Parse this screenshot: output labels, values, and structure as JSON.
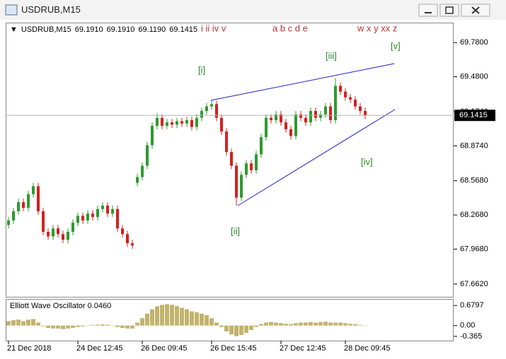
{
  "window": {
    "title": "USDRUB,M15"
  },
  "chart_data": [
    {
      "type": "candlestick",
      "symbol": "USDRUB,M15",
      "ohlc_info": [
        "69.1910",
        "69.1910",
        "69.1190",
        "69.1415"
      ],
      "categories": [
        "21 Dec 2018",
        null,
        null,
        null,
        null,
        null,
        null,
        null,
        null,
        null,
        null,
        null,
        null,
        null,
        "24 Dec 12:45",
        null,
        null,
        null,
        null,
        null,
        null,
        null,
        null,
        null,
        null,
        null,
        null,
        "26 Dec 09:45",
        null,
        null,
        null,
        null,
        null,
        null,
        null,
        null,
        null,
        null,
        null,
        null,
        null,
        "26 Dec 15:45",
        null,
        null,
        null,
        null,
        null,
        null,
        null,
        null,
        null,
        null,
        null,
        null,
        null,
        "27 Dec 12:45",
        null,
        null,
        null,
        null,
        null,
        null,
        null,
        null,
        null,
        null,
        null,
        null,
        "28 Dec 09:45",
        null,
        null,
        null,
        null
      ],
      "open": [
        68.18,
        68.22,
        68.3,
        68.38,
        68.33,
        68.45,
        68.52,
        68.3,
        68.12,
        68.08,
        68.15,
        68.1,
        68.05,
        68.12,
        68.2,
        68.26,
        68.22,
        68.28,
        68.25,
        68.32,
        68.35,
        68.28,
        68.32,
        68.15,
        68.1,
        68.02,
        68.55,
        68.6,
        68.7,
        68.88,
        69.05,
        69.12,
        69.05,
        69.08,
        69.06,
        69.09,
        69.07,
        69.1,
        69.04,
        69.12,
        69.18,
        69.22,
        69.24,
        69.12,
        69.0,
        68.82,
        68.7,
        68.42,
        68.62,
        68.72,
        68.66,
        68.8,
        68.95,
        69.12,
        69.1,
        69.15,
        69.08,
        69.02,
        68.96,
        69.15,
        69.12,
        69.08,
        69.18,
        69.12,
        69.15,
        69.22,
        69.1,
        69.4,
        69.35,
        69.3,
        69.28,
        69.22,
        69.18
      ],
      "high": [
        68.25,
        68.33,
        68.41,
        68.41,
        68.48,
        68.55,
        68.55,
        68.33,
        68.15,
        68.18,
        68.18,
        68.13,
        68.15,
        68.23,
        68.29,
        68.29,
        68.31,
        68.31,
        68.35,
        68.38,
        68.38,
        68.35,
        68.35,
        68.18,
        68.13,
        68.05,
        68.63,
        68.73,
        68.91,
        69.08,
        69.16,
        69.15,
        69.11,
        69.11,
        69.12,
        69.12,
        69.13,
        69.13,
        69.15,
        69.21,
        69.25,
        69.27,
        69.27,
        69.15,
        69.03,
        68.85,
        68.73,
        68.65,
        68.75,
        68.75,
        68.83,
        68.98,
        69.15,
        69.15,
        69.18,
        69.18,
        69.11,
        69.05,
        69.18,
        69.18,
        69.15,
        69.21,
        69.21,
        69.18,
        69.25,
        69.25,
        69.47,
        69.43,
        69.38,
        69.33,
        69.31,
        69.25,
        69.21
      ],
      "low": [
        68.15,
        68.19,
        68.27,
        68.3,
        68.3,
        68.42,
        68.27,
        68.09,
        68.05,
        68.05,
        68.07,
        68.02,
        68.02,
        68.09,
        68.17,
        68.19,
        68.19,
        68.22,
        68.22,
        68.29,
        68.25,
        68.25,
        68.12,
        68.07,
        67.99,
        67.97,
        68.52,
        68.57,
        68.67,
        68.85,
        69.02,
        69.02,
        69.02,
        69.03,
        69.03,
        69.04,
        69.04,
        69.01,
        69.01,
        69.09,
        69.15,
        69.19,
        69.09,
        68.97,
        68.79,
        68.67,
        68.35,
        68.39,
        68.59,
        68.63,
        68.63,
        68.77,
        68.92,
        69.07,
        69.07,
        69.05,
        68.99,
        68.93,
        68.93,
        69.09,
        69.05,
        69.05,
        69.09,
        69.09,
        69.12,
        69.07,
        69.07,
        69.32,
        69.27,
        69.25,
        69.19,
        69.15,
        69.11
      ],
      "close": [
        68.22,
        68.3,
        68.38,
        68.33,
        68.45,
        68.52,
        68.3,
        68.12,
        68.08,
        68.15,
        68.1,
        68.05,
        68.12,
        68.2,
        68.26,
        68.22,
        68.28,
        68.25,
        68.32,
        68.35,
        68.28,
        68.32,
        68.15,
        68.1,
        68.02,
        68.0,
        68.6,
        68.7,
        68.88,
        69.05,
        69.12,
        69.05,
        69.08,
        69.06,
        69.09,
        69.07,
        69.1,
        69.04,
        69.12,
        69.18,
        69.22,
        69.24,
        69.12,
        69.0,
        68.82,
        68.7,
        68.42,
        68.62,
        68.72,
        68.66,
        68.8,
        68.95,
        69.12,
        69.1,
        69.15,
        69.08,
        69.02,
        68.96,
        69.15,
        69.12,
        69.08,
        69.18,
        69.12,
        69.15,
        69.22,
        69.1,
        69.4,
        69.35,
        69.3,
        69.28,
        69.22,
        69.18,
        69.14
      ],
      "up_color": "#2e9a2e",
      "down_color": "#d42020",
      "ylim": [
        67.55,
        69.955
      ],
      "yticks": [
        {
          "value": 69.78,
          "label": "69.7800"
        },
        {
          "value": 69.48,
          "label": "69.4800"
        },
        {
          "value": 69.174,
          "label": "69.1740"
        },
        {
          "value": 68.874,
          "label": "68.8740"
        },
        {
          "value": 68.568,
          "label": "68.5680"
        },
        {
          "value": 68.268,
          "label": "68.2680"
        },
        {
          "value": 67.968,
          "label": "67.9680"
        },
        {
          "value": 67.662,
          "label": "67.6620"
        }
      ],
      "last_price": {
        "value": 69.1415,
        "label": "69.1415"
      },
      "annotations": [
        {
          "text": "i ii iv v",
          "color": "#c03030"
        },
        {
          "text": "a b c d e",
          "color": "#c03030"
        },
        {
          "text": "w x y xx z",
          "color": "#c03030"
        },
        {
          "text": "[i]",
          "color": "#2a8a2a"
        },
        {
          "text": "[ii]",
          "color": "#2a8a2a"
        },
        {
          "text": "[iii]",
          "color": "#2a8a2a"
        },
        {
          "text": "[iv]",
          "color": "#2a8a2a"
        },
        {
          "text": "[v]",
          "color": "#2a8a2a"
        }
      ]
    },
    {
      "type": "bar",
      "title": "Elliott Wave Oscillator 0.0460",
      "color": "#c2b36e",
      "values": [
        0.15,
        0.18,
        0.2,
        0.15,
        0.2,
        0.22,
        0.1,
        -0.02,
        -0.08,
        -0.1,
        -0.1,
        -0.12,
        -0.1,
        -0.08,
        -0.05,
        -0.03,
        0.0,
        0.02,
        0.03,
        0.04,
        0.03,
        0.0,
        -0.05,
        -0.08,
        -0.1,
        -0.1,
        0.1,
        0.25,
        0.4,
        0.55,
        0.65,
        0.7,
        0.72,
        0.7,
        0.66,
        0.6,
        0.55,
        0.48,
        0.45,
        0.4,
        0.35,
        0.25,
        0.1,
        -0.05,
        -0.2,
        -0.3,
        -0.36,
        -0.32,
        -0.25,
        -0.15,
        -0.05,
        0.05,
        0.1,
        0.12,
        0.1,
        0.08,
        0.06,
        0.05,
        0.08,
        0.1,
        0.1,
        0.12,
        0.1,
        0.12,
        0.13,
        0.1,
        0.1,
        0.1,
        0.08,
        0.06,
        0.05,
        0.02,
        0.0
      ],
      "ylim": [
        -0.51,
        0.9
      ],
      "yticks": [
        0.6797,
        {
          "value": 0,
          "label": "0.00"
        },
        -0.365
      ]
    }
  ]
}
